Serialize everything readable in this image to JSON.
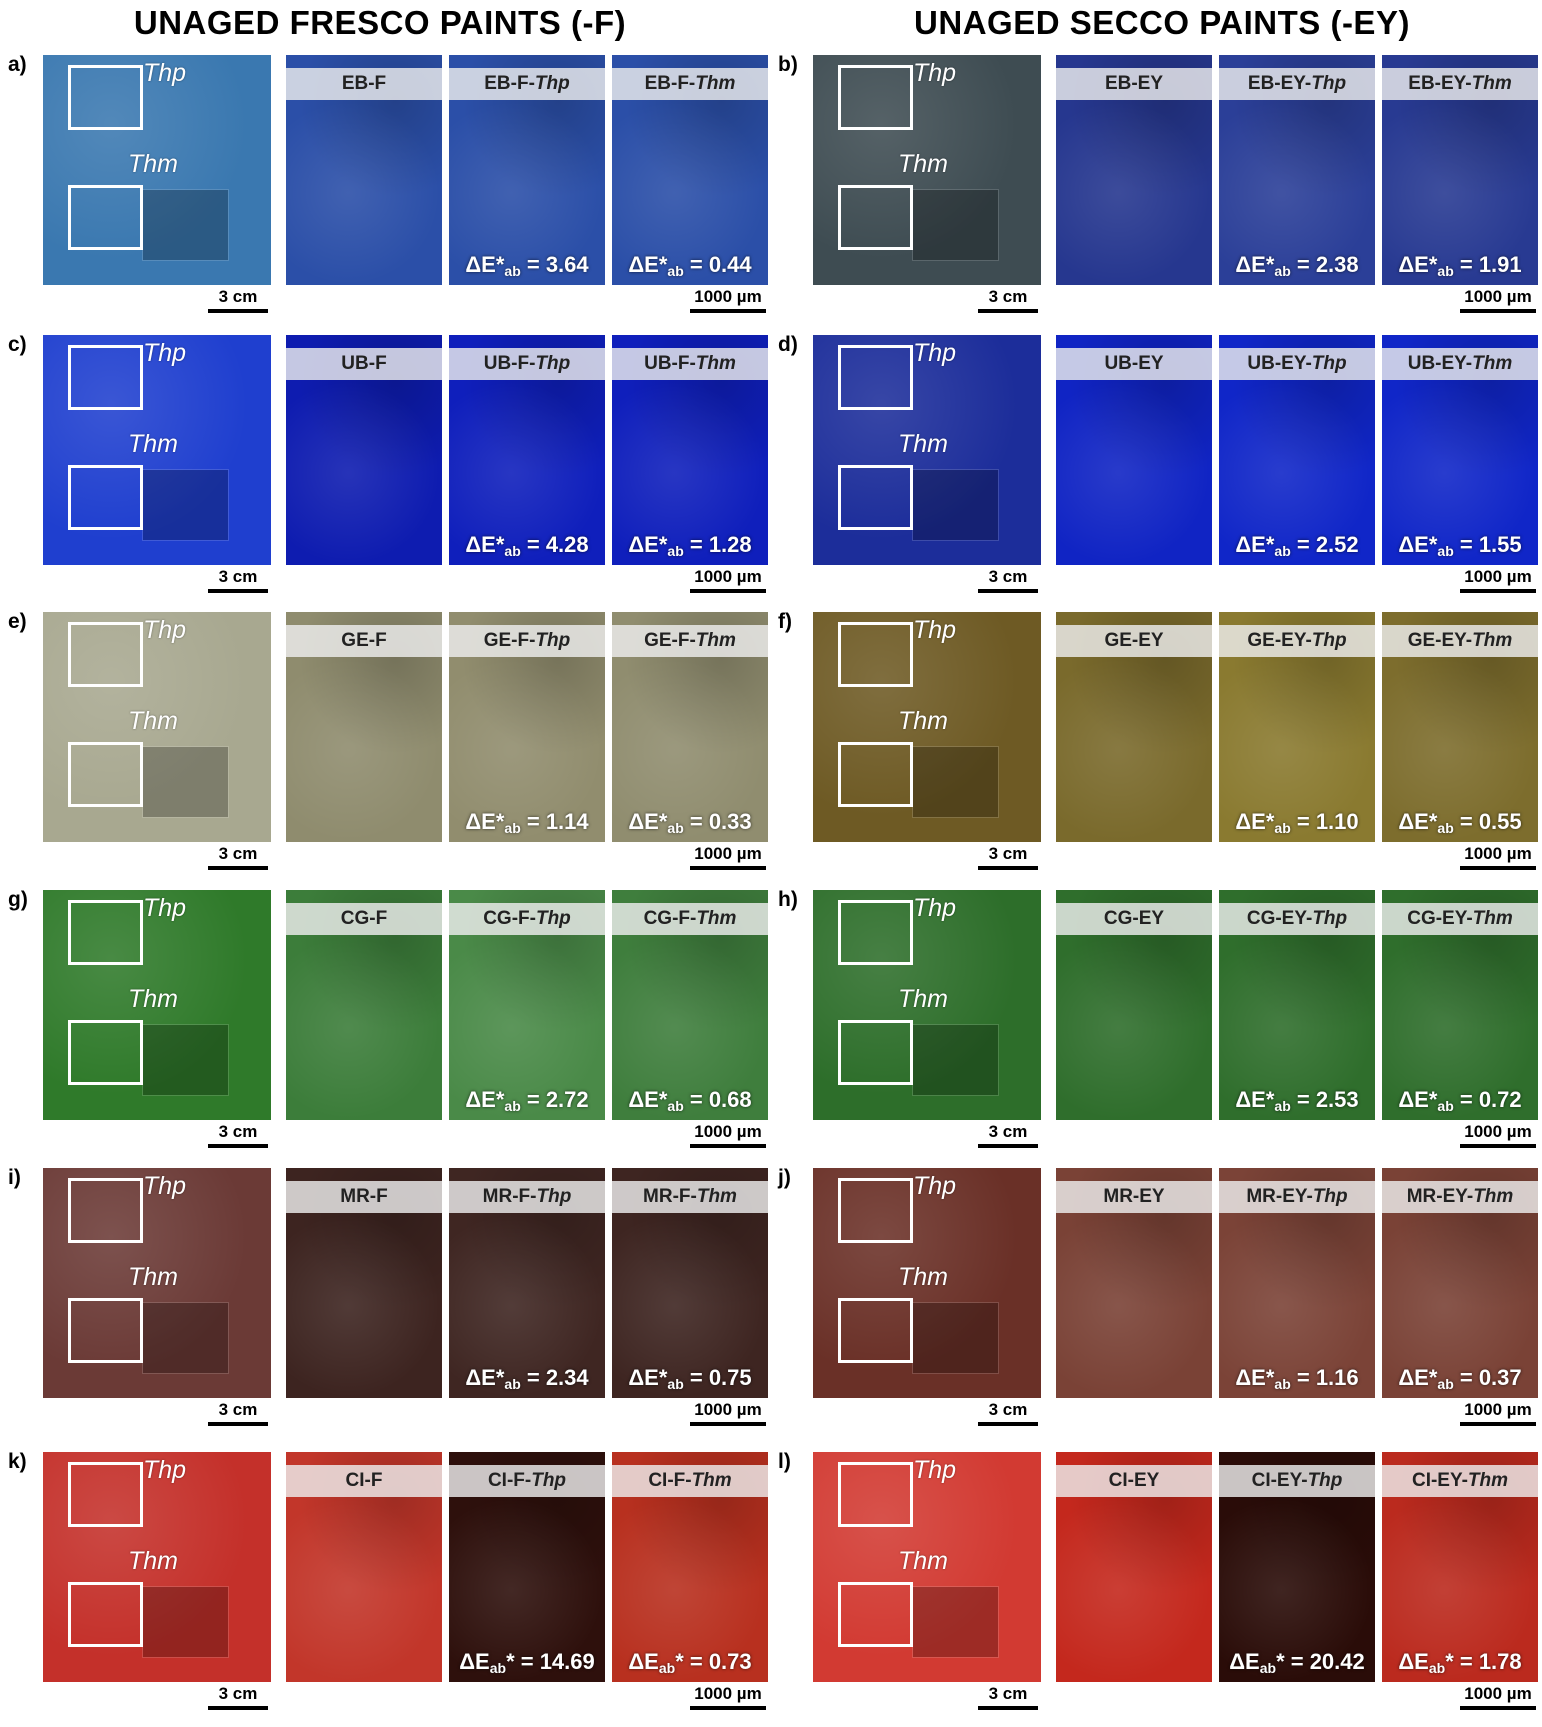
{
  "titles": {
    "fresco": "UNAGED FRESCO PAINTS (-F)",
    "secco": "UNAGED SECCO PAINTS (-EY)"
  },
  "scale": {
    "macro": "3 cm",
    "micro": "1000 µm"
  },
  "region_labels": {
    "thp": "Thp",
    "thm": "Thm"
  },
  "panels": [
    {
      "id": "a)",
      "code": "EB",
      "suffix": "-F",
      "headers": [
        "EB-F",
        "EB-F-",
        "EB-F-"
      ],
      "delta": [
        "",
        "3.64",
        "0.44"
      ],
      "delta_style": "star"
    },
    {
      "id": "b)",
      "code": "EB",
      "suffix": "-EY",
      "headers": [
        "EB-EY",
        "EB-EY-",
        "EB-EY-"
      ],
      "delta": [
        "",
        "2.38",
        "1.91"
      ],
      "delta_style": "star"
    },
    {
      "id": "c)",
      "code": "UB",
      "suffix": "-F",
      "headers": [
        "UB-F",
        "UB-F-",
        "UB-F-"
      ],
      "delta": [
        "",
        "4.28",
        "1.28"
      ],
      "delta_style": "star"
    },
    {
      "id": "d)",
      "code": "UB",
      "suffix": "-EY",
      "headers": [
        "UB-EY",
        "UB-EY-",
        "UB-EY-"
      ],
      "delta": [
        "",
        "2.52",
        "1.55"
      ],
      "delta_style": "star"
    },
    {
      "id": "e)",
      "code": "GE",
      "suffix": "-F",
      "headers": [
        "GE-F",
        "GE-F-",
        "GE-F-"
      ],
      "delta": [
        "",
        "1.14",
        "0.33"
      ],
      "delta_style": "star"
    },
    {
      "id": "f)",
      "code": "GE",
      "suffix": "-EY",
      "headers": [
        "GE-EY",
        "GE-EY-",
        "GE-EY-"
      ],
      "delta": [
        "",
        "1.10",
        "0.55"
      ],
      "delta_style": "star"
    },
    {
      "id": "g)",
      "code": "CG",
      "suffix": "-F",
      "headers": [
        "CG-F",
        "CG-F-",
        "CG-F-"
      ],
      "delta": [
        "",
        "2.72",
        "0.68"
      ],
      "delta_style": "star"
    },
    {
      "id": "h)",
      "code": "CG",
      "suffix": "-EY",
      "headers": [
        "CG-EY",
        "CG-EY-",
        "CG-EY-"
      ],
      "delta": [
        "",
        "2.53",
        "0.72"
      ],
      "delta_style": "star"
    },
    {
      "id": "i)",
      "code": "MR",
      "suffix": "-F",
      "headers": [
        "MR-F",
        "MR-F-",
        "MR-F-"
      ],
      "delta": [
        "",
        "2.34",
        "0.75"
      ],
      "delta_style": "star"
    },
    {
      "id": "j)",
      "code": "MR",
      "suffix": "-EY",
      "headers": [
        "MR-EY",
        "MR-EY-",
        "MR-EY-"
      ],
      "delta": [
        "",
        "1.16",
        "0.37"
      ],
      "delta_style": "star"
    },
    {
      "id": "k)",
      "code": "CI",
      "suffix": "-F",
      "headers": [
        "CI-F",
        "CI-F-",
        "CI-F-"
      ],
      "delta": [
        "",
        "14.69",
        "0.73"
      ],
      "delta_style": "sub"
    },
    {
      "id": "l)",
      "code": "CI",
      "suffix": "-EY",
      "headers": [
        "CI-EY",
        "CI-EY-",
        "CI-EY-"
      ],
      "delta": [
        "",
        "20.42",
        "1.78"
      ],
      "delta_style": "sub"
    }
  ],
  "colors": {
    "EB": [
      "#3a78b0",
      "#2b4fa8",
      "#2b4fa8",
      "#2b4fa8"
    ],
    "EB-EY": [
      "#3e4c52",
      "#26378f",
      "#2b3f98",
      "#283a92"
    ],
    "UB": [
      "#1f3fcf",
      "#0e1cb0",
      "#0f1fbc",
      "#0f1fbc"
    ],
    "UB-EY": [
      "#1c2d9a",
      "#1024c4",
      "#1026c8",
      "#1026c8"
    ],
    "GE": [
      "#a8a890",
      "#8f8c6e",
      "#918d6e",
      "#908d6f"
    ],
    "GE-EY": [
      "#6e5a24",
      "#7a6a2c",
      "#8a7a30",
      "#7d6d2d"
    ],
    "CG": [
      "#2f7a2a",
      "#3c7d3a",
      "#4a8a48",
      "#3f7e3d"
    ],
    "CG-EY": [
      "#2d6e2a",
      "#2f6e2c",
      "#2f6e2c",
      "#2f6e2c"
    ],
    "MR": [
      "#6b3a36",
      "#3d2420",
      "#3f2622",
      "#3e2521"
    ],
    "MR-EY": [
      "#6a3027",
      "#7a4236",
      "#7b4337",
      "#7a4236"
    ],
    "CI": [
      "#c4302a",
      "#c2362a",
      "#2e100c",
      "#b8301f"
    ],
    "CI-EY": [
      "#d23a32",
      "#c4281d",
      "#2a0c08",
      "#bb2a1e"
    ]
  }
}
